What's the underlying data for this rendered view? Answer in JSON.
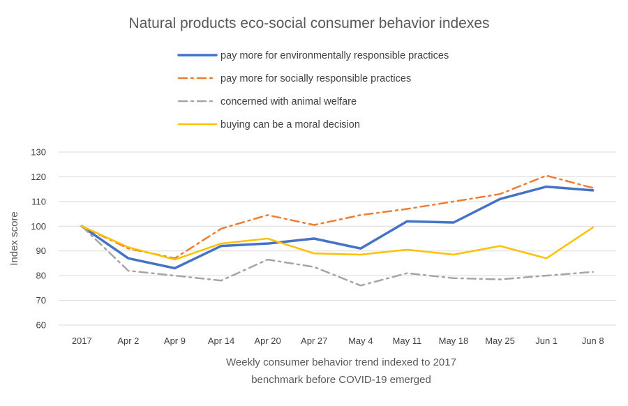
{
  "chart_data": {
    "type": "line",
    "title": "Natural products eco-social consumer behavior indexes",
    "xlabel_lines": [
      "Weekly consumer behavior trend indexed to 2017",
      "benchmark before COVID-19 emerged"
    ],
    "ylabel": "Index score",
    "categories": [
      "2017",
      "Apr 2",
      "Apr 9",
      "Apr 14",
      "Apr 20",
      "Apr 27",
      "May 4",
      "May 11",
      "May 18",
      "May 25",
      "Jun 1",
      "Jun 8"
    ],
    "ylim": [
      60,
      130
    ],
    "yticks": [
      60,
      70,
      80,
      90,
      100,
      110,
      120,
      130
    ],
    "grid": true,
    "legend_position": "top",
    "series": [
      {
        "name": "pay more for environmentally responsible practices",
        "color": "#4472C4",
        "style": "solid",
        "values": [
          100,
          87,
          83,
          92,
          93,
          95,
          91,
          102,
          101.5,
          111,
          116,
          114.5
        ]
      },
      {
        "name": "pay more for socially responsible practices",
        "color": "#ED7D31",
        "style": "dashdot",
        "values": [
          100,
          91,
          87,
          99,
          104.5,
          100.5,
          104.5,
          107,
          110,
          113,
          120.5,
          115.5
        ]
      },
      {
        "name": "concerned with animal welfare",
        "color": "#A5A5A5",
        "style": "dashdot",
        "values": [
          100,
          82,
          80,
          78,
          86.5,
          83.5,
          76,
          81,
          79,
          78.5,
          80,
          81.5
        ]
      },
      {
        "name": "buying can be a moral decision",
        "color": "#FFC000",
        "style": "solid",
        "values": [
          100,
          91.5,
          86.5,
          93,
          95,
          89,
          88.5,
          90.5,
          88.5,
          92,
          87,
          99.5
        ]
      }
    ]
  }
}
